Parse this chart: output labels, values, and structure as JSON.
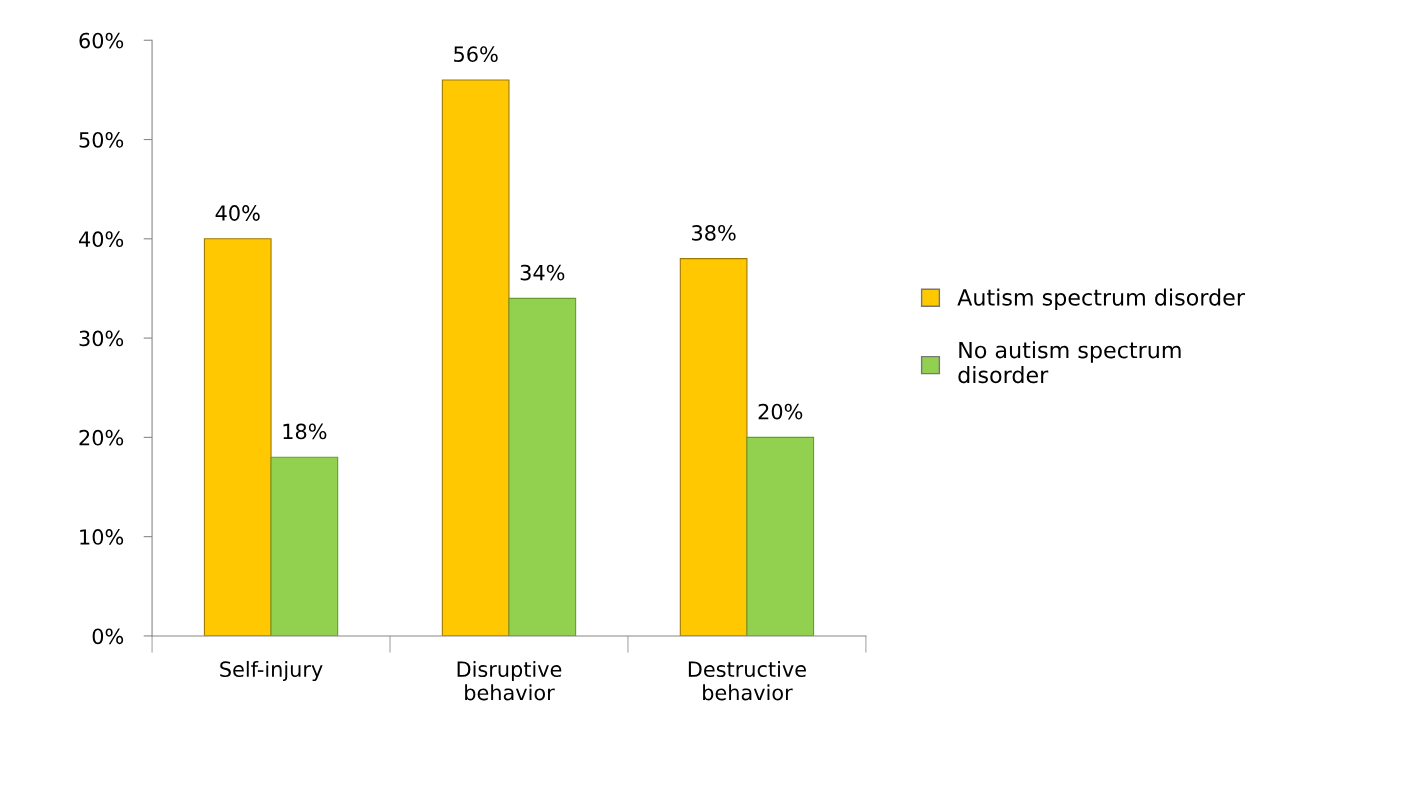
{
  "chart_data": {
    "type": "bar",
    "categories": [
      "Self-injury",
      "Disruptive\nbehavior",
      "Destructive\nbehavior"
    ],
    "series": [
      {
        "name": "Autism spectrum disorder",
        "color": "#ffc800",
        "values": [
          40,
          56,
          38
        ],
        "value_labels": [
          "40%",
          "56%",
          "38%"
        ]
      },
      {
        "name": "No autism spectrum\ndisorder",
        "color": "#92d050",
        "values": [
          18,
          34,
          20
        ],
        "value_labels": [
          "18%",
          "34%",
          "20%"
        ]
      }
    ],
    "ylim": [
      0,
      60
    ],
    "yticks": [
      {
        "value": 0,
        "label": "0%"
      },
      {
        "value": 10,
        "label": "10%"
      },
      {
        "value": 20,
        "label": "20%"
      },
      {
        "value": 30,
        "label": "30%"
      },
      {
        "value": 40,
        "label": "40%"
      },
      {
        "value": 50,
        "label": "50%"
      },
      {
        "value": 60,
        "label": "60%"
      }
    ],
    "grid": false,
    "legend": "right"
  }
}
